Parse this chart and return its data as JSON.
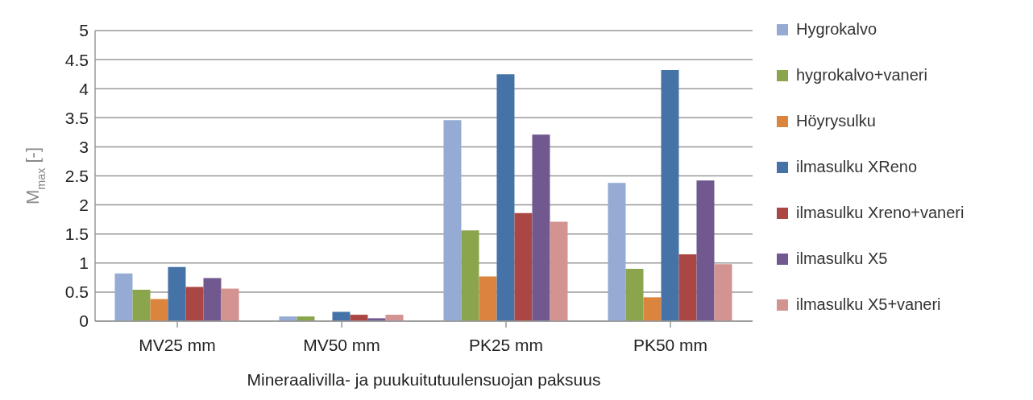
{
  "chart_data": {
    "type": "bar",
    "xlabel": "Mineraalivilla- ja puukuitutuulensuojan paksuus",
    "ylabel": "M$_{max}$ [-]",
    "categories": [
      "MV25 mm",
      "MV50 mm",
      "PK25 mm",
      "PK50 mm"
    ],
    "series": [
      {
        "name": "Hygrokalvo",
        "color": "#95abd3",
        "values": [
          0.82,
          0.08,
          3.46,
          2.38
        ]
      },
      {
        "name": "hygrokalvo+vaneri",
        "color": "#8ba54d",
        "values": [
          0.54,
          0.08,
          1.56,
          0.9
        ]
      },
      {
        "name": "Höyrysulku",
        "color": "#db843d",
        "values": [
          0.38,
          0,
          0.77,
          0.41
        ]
      },
      {
        "name": "ilmasulku XReno",
        "color": "#4573a7",
        "values": [
          0.93,
          0.16,
          4.25,
          4.32
        ]
      },
      {
        "name": "ilmasulku Xreno+vaneri",
        "color": "#aa4744",
        "values": [
          0.59,
          0.11,
          1.86,
          1.15
        ]
      },
      {
        "name": "ilmasulku X5",
        "color": "#71588f",
        "values": [
          0.74,
          0.05,
          3.21,
          2.42
        ]
      },
      {
        "name": "ilmasulku X5+vaneri",
        "color": "#d29391",
        "values": [
          0.56,
          0.11,
          1.71,
          0.98
        ]
      }
    ],
    "ylim": [
      0,
      5
    ],
    "yticks": [
      0,
      0.5,
      1,
      1.5,
      2,
      2.5,
      3,
      3.5,
      4,
      4.5,
      5
    ],
    "grid": "y",
    "legend": "right"
  }
}
